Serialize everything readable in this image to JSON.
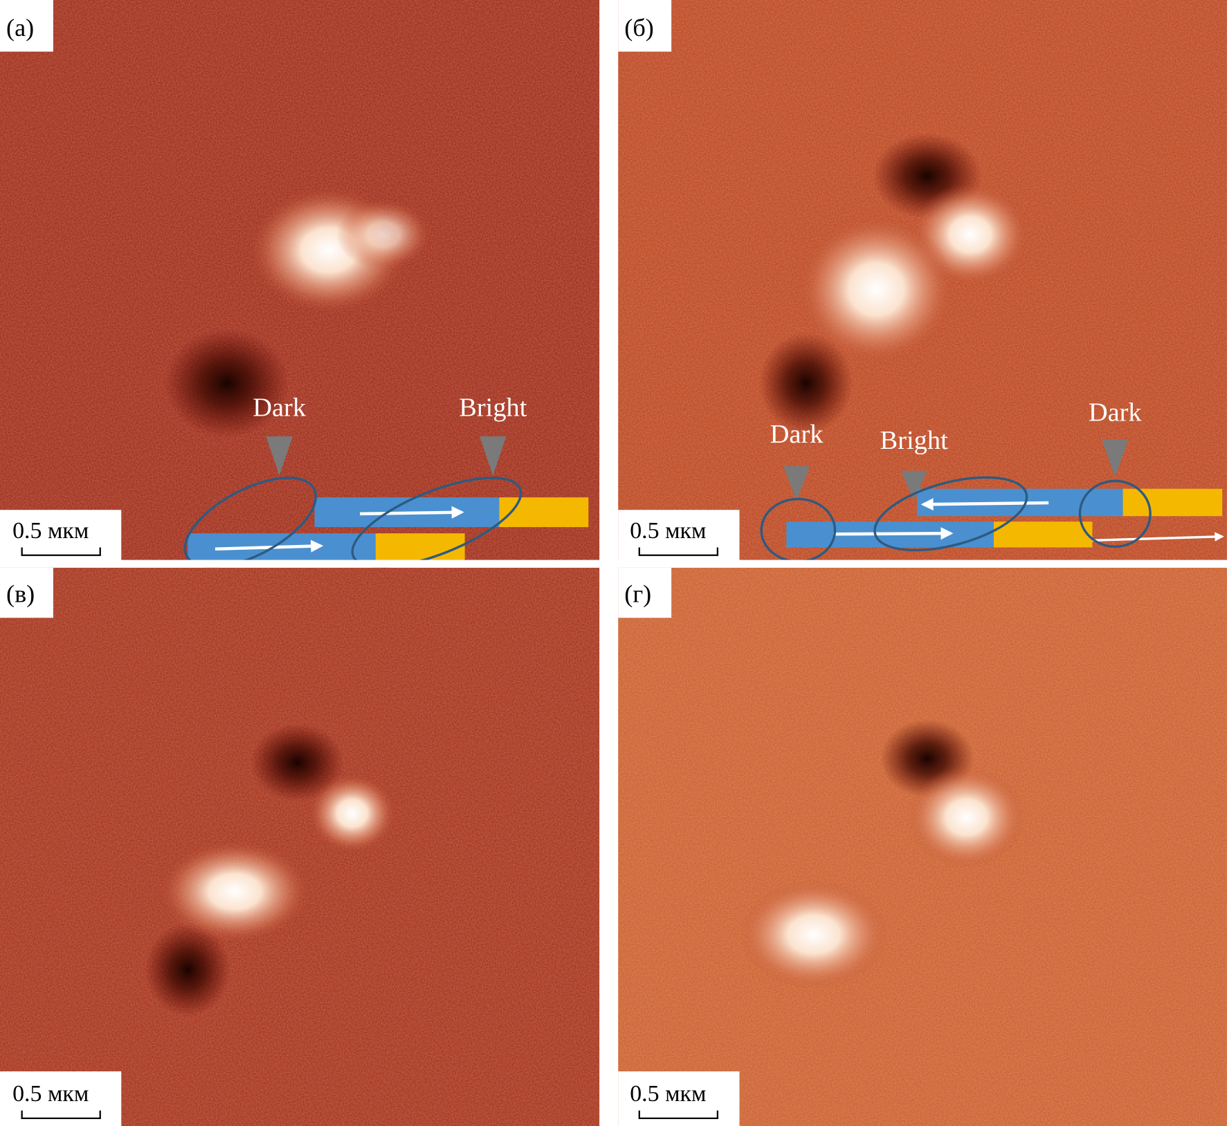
{
  "panels": [
    {
      "label": "(а)",
      "scale": "0.5 мкм",
      "annotations": [
        "Dark",
        "Bright"
      ]
    },
    {
      "label": "(б)",
      "scale": "0.5 мкм",
      "annotations": [
        "Dark",
        "Bright",
        "Dark"
      ]
    },
    {
      "label": "(в)",
      "scale": "0.5 мкм"
    },
    {
      "label": "(г)",
      "scale": "0.5 мкм"
    }
  ],
  "colors": {
    "background_a": "#9a2414",
    "background_b": "#b8401c",
    "background_d": "#c85a2a",
    "bar_blue": "#4a90d0",
    "bar_yellow": "#f5b800",
    "marker_gray": "#7a7a7a"
  }
}
